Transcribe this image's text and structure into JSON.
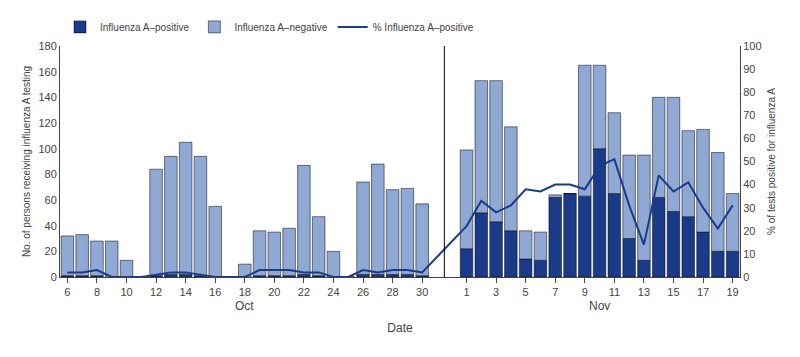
{
  "chart_data": {
    "type": "bar",
    "stacked": true,
    "xlabel": "Date",
    "ylabel": "No. of persons receiving influenza A testing",
    "y2label": "% of tests positive for influenza A",
    "annotations": [
      "Oct",
      "Nov"
    ],
    "categories": [
      "6",
      null,
      "8",
      null,
      "10",
      null,
      "12",
      null,
      "14",
      null,
      "16",
      null,
      "18",
      null,
      "20",
      null,
      "22",
      null,
      "24",
      null,
      "26",
      null,
      "28",
      null,
      "30",
      "1",
      null,
      "3",
      null,
      "5",
      null,
      "7",
      null,
      "9",
      null,
      "11",
      null,
      "13",
      null,
      "15",
      null,
      "17",
      null,
      "19"
    ],
    "series": [
      {
        "name": "Influenza A–positive",
        "type": "bar",
        "color": "#1a3a8a",
        "values": [
          1,
          1,
          1,
          0,
          0,
          0,
          1,
          2,
          2,
          1,
          0,
          0,
          0,
          1,
          1,
          1,
          2,
          1,
          0,
          0,
          2,
          2,
          2,
          2,
          1,
          22,
          50,
          43,
          36,
          14,
          13,
          62,
          65,
          63,
          100,
          65,
          30,
          13,
          62,
          51,
          47,
          35,
          20,
          20
        ]
      },
      {
        "name": "Influenza A–negative",
        "type": "bar",
        "color": "#8fa8d4",
        "values": [
          31,
          32,
          27,
          28,
          13,
          0,
          83,
          92,
          103,
          93,
          55,
          0,
          10,
          35,
          34,
          37,
          85,
          46,
          20,
          0,
          72,
          86,
          66,
          67,
          56,
          77,
          103,
          110,
          81,
          22,
          22,
          2,
          0,
          102,
          65,
          63,
          65,
          82,
          78,
          89,
          67,
          80,
          77,
          45
        ]
      },
      {
        "name": "% Influenza A–positive",
        "type": "line",
        "axis": "y2",
        "color": "#1a3a8a",
        "values": [
          2,
          2,
          3,
          0,
          0,
          0,
          1,
          2,
          2,
          1,
          0,
          0,
          0,
          3,
          3,
          3,
          2,
          2,
          0,
          0,
          3,
          2,
          3,
          3,
          2,
          22,
          33,
          28,
          31,
          38,
          37,
          40,
          40,
          38,
          48,
          51,
          31,
          14,
          44,
          37,
          41,
          30,
          21,
          31
        ]
      }
    ],
    "ylim": [
      0,
      180
    ],
    "yticks": [
      0,
      20,
      40,
      60,
      80,
      100,
      120,
      140,
      160,
      180
    ],
    "y2lim": [
      0,
      100
    ],
    "y2ticks": [
      0,
      10,
      20,
      30,
      40,
      50,
      60,
      70,
      80,
      90,
      100
    ],
    "grid": false,
    "legend": "upper left"
  }
}
